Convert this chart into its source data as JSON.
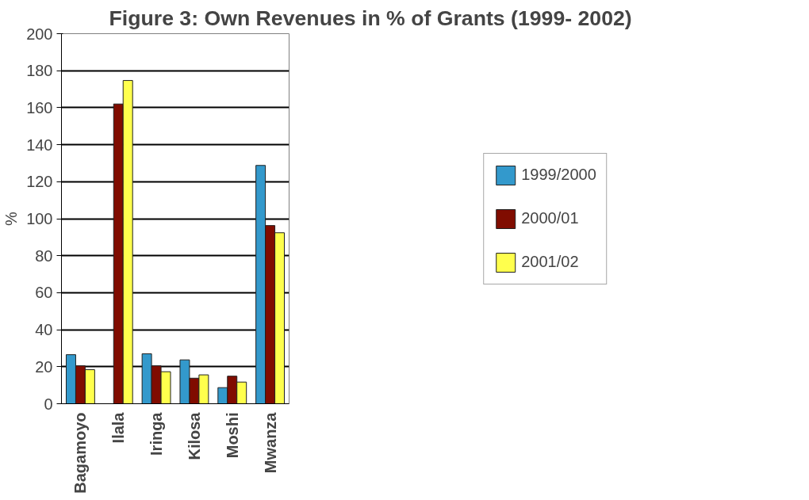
{
  "chart_data": {
    "type": "bar",
    "title": "Figure 3: Own Revenues in % of Grants (1999- 2002)",
    "ylabel": "%",
    "categories": [
      "Bagamoyo",
      "Ilala",
      "Iringa",
      "Kilosa",
      "Moshi",
      "Mwanza"
    ],
    "series": [
      {
        "name": "1999/2000",
        "color": "#3399cc",
        "values": [
          26.5,
          null,
          27,
          23.7,
          8.7,
          128.8
        ]
      },
      {
        "name": "2000/01",
        "color": "#800c00",
        "values": [
          20.5,
          162,
          20.5,
          13.8,
          14.9,
          96.3
        ]
      },
      {
        "name": "2001/02",
        "color": "#ffff4d",
        "values": [
          18.4,
          174.7,
          17.3,
          15.6,
          11.7,
          92.4
        ]
      }
    ],
    "ylim": [
      0,
      200
    ],
    "yticks": [
      0,
      20,
      40,
      60,
      80,
      100,
      120,
      140,
      160,
      180,
      200
    ],
    "grid": "y",
    "legend": "right"
  }
}
